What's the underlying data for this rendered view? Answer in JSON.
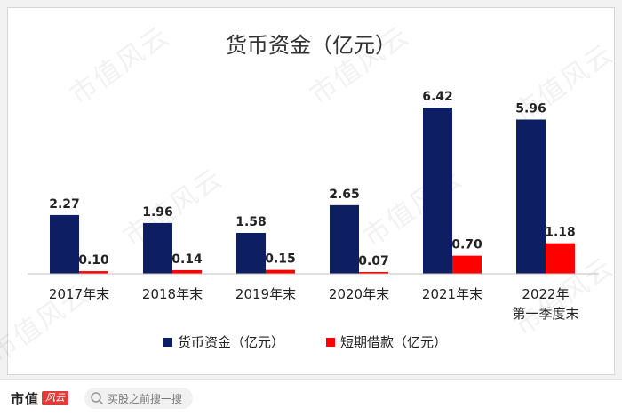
{
  "chart_data": {
    "type": "bar",
    "title": "货币资金（亿元）",
    "categories": [
      [
        "2017年末"
      ],
      [
        "2018年末"
      ],
      [
        "2019年末"
      ],
      [
        "2020年末"
      ],
      [
        "2021年末"
      ],
      [
        "2022年",
        "第一季度末"
      ]
    ],
    "series": [
      {
        "name": "货币资金（亿元）",
        "color": "#0e1e63",
        "values": [
          2.27,
          1.96,
          1.58,
          2.65,
          6.42,
          5.96
        ]
      },
      {
        "name": "短期借款（亿元）",
        "color": "#ff0000",
        "values": [
          0.1,
          0.14,
          0.15,
          0.07,
          0.7,
          1.18
        ]
      }
    ],
    "ylim": [
      0,
      7.35
    ],
    "grid": false,
    "legend_position": "bottom",
    "data_labels": true
  },
  "watermark": "市值风云",
  "footer": {
    "brand": "市值",
    "brand_seal": "风云",
    "search_placeholder": "买股之前搜一搜"
  }
}
